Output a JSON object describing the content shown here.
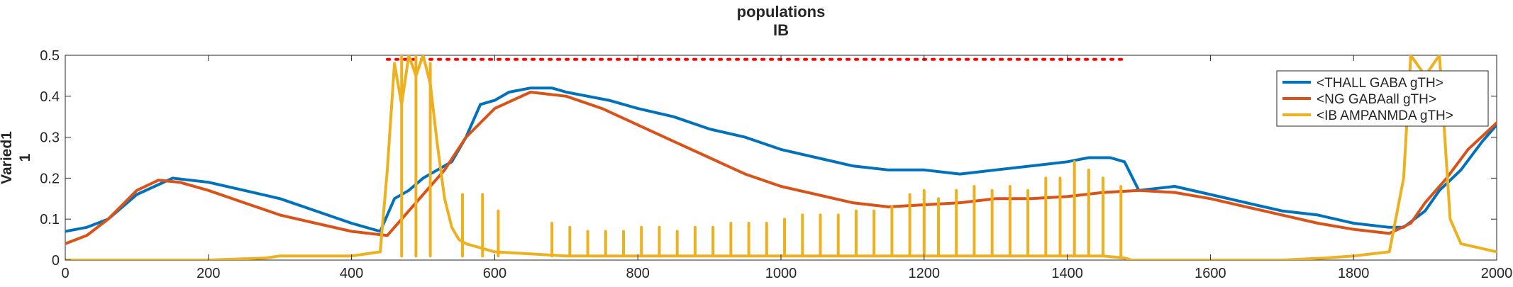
{
  "chart_data": {
    "type": "line",
    "title": [
      "populations",
      "IB"
    ],
    "ylabel": [
      "Varied1",
      "1"
    ],
    "xlabel": "",
    "xlim": [
      0,
      2000
    ],
    "ylim": [
      0,
      0.5
    ],
    "xticks": [
      "0",
      "200",
      "400",
      "600",
      "800",
      "1000",
      "1200",
      "1400",
      "1600",
      "1800",
      "2000"
    ],
    "yticks": [
      "0",
      "0.1",
      "0.2",
      "0.3",
      "0.4",
      "0.5"
    ],
    "grid": false,
    "legend_position": "top-right",
    "series": [
      {
        "name": "<THALL GABA gTH>",
        "color": "#0072BD",
        "x": [
          0,
          30,
          60,
          100,
          150,
          200,
          250,
          300,
          350,
          400,
          440,
          460,
          480,
          500,
          520,
          540,
          560,
          580,
          600,
          620,
          650,
          680,
          700,
          730,
          760,
          800,
          850,
          900,
          950,
          1000,
          1050,
          1100,
          1150,
          1200,
          1250,
          1300,
          1350,
          1400,
          1430,
          1460,
          1480,
          1500,
          1550,
          1600,
          1650,
          1700,
          1750,
          1800,
          1850,
          1870,
          1900,
          1920,
          1950,
          1980,
          2000
        ],
        "y": [
          0.07,
          0.08,
          0.1,
          0.16,
          0.2,
          0.19,
          0.17,
          0.15,
          0.12,
          0.09,
          0.07,
          0.15,
          0.17,
          0.2,
          0.22,
          0.24,
          0.3,
          0.38,
          0.39,
          0.41,
          0.42,
          0.42,
          0.41,
          0.4,
          0.39,
          0.37,
          0.35,
          0.32,
          0.3,
          0.27,
          0.25,
          0.23,
          0.22,
          0.22,
          0.21,
          0.22,
          0.23,
          0.24,
          0.25,
          0.25,
          0.24,
          0.17,
          0.18,
          0.16,
          0.14,
          0.12,
          0.11,
          0.09,
          0.08,
          0.08,
          0.12,
          0.17,
          0.22,
          0.29,
          0.33
        ]
      },
      {
        "name": "<NG GABAall gTH>",
        "color": "#D95319",
        "x": [
          0,
          30,
          60,
          100,
          130,
          160,
          200,
          250,
          300,
          350,
          400,
          450,
          470,
          500,
          530,
          560,
          600,
          650,
          700,
          750,
          800,
          850,
          900,
          950,
          1000,
          1050,
          1100,
          1150,
          1200,
          1250,
          1300,
          1350,
          1400,
          1450,
          1500,
          1550,
          1600,
          1650,
          1700,
          1750,
          1800,
          1850,
          1880,
          1900,
          1930,
          1960,
          2000
        ],
        "y": [
          0.04,
          0.06,
          0.1,
          0.17,
          0.195,
          0.19,
          0.17,
          0.14,
          0.11,
          0.09,
          0.07,
          0.06,
          0.1,
          0.16,
          0.22,
          0.3,
          0.37,
          0.41,
          0.4,
          0.37,
          0.33,
          0.29,
          0.25,
          0.21,
          0.18,
          0.16,
          0.14,
          0.13,
          0.135,
          0.14,
          0.15,
          0.15,
          0.155,
          0.165,
          0.17,
          0.165,
          0.15,
          0.13,
          0.11,
          0.09,
          0.075,
          0.065,
          0.09,
          0.14,
          0.2,
          0.27,
          0.335
        ]
      },
      {
        "name": "<IB AMPANMDA gTH>",
        "color": "#EDB120",
        "x": [
          0,
          100,
          200,
          280,
          300,
          350,
          400,
          440,
          450,
          460,
          470,
          480,
          490,
          500,
          510,
          520,
          530,
          540,
          550,
          560,
          580,
          600,
          650,
          700,
          800,
          900,
          1000,
          1100,
          1150,
          1200,
          1250,
          1300,
          1350,
          1400,
          1450,
          1480,
          1490,
          1550,
          1600,
          1700,
          1760,
          1800,
          1850,
          1870,
          1880,
          1900,
          1920,
          1935,
          1950,
          2000
        ],
        "y": [
          0.0,
          0.0,
          0.0,
          0.005,
          0.01,
          0.01,
          0.01,
          0.02,
          0.22,
          0.48,
          0.38,
          0.5,
          0.45,
          0.5,
          0.43,
          0.28,
          0.15,
          0.08,
          0.05,
          0.04,
          0.03,
          0.02,
          0.015,
          0.01,
          0.01,
          0.01,
          0.01,
          0.01,
          0.01,
          0.01,
          0.01,
          0.01,
          0.01,
          0.01,
          0.01,
          0.005,
          0.0,
          0.0,
          0.0,
          0.0,
          0.005,
          0.01,
          0.02,
          0.2,
          0.5,
          0.45,
          0.5,
          0.1,
          0.04,
          0.02
        ]
      }
    ],
    "spikes": [
      {
        "x": 470,
        "y": 0.5
      },
      {
        "x": 490,
        "y": 0.5
      },
      {
        "x": 510,
        "y": 0.48
      },
      {
        "x": 555,
        "y": 0.16
      },
      {
        "x": 583,
        "y": 0.16
      },
      {
        "x": 605,
        "y": 0.12
      },
      {
        "x": 680,
        "y": 0.09
      },
      {
        "x": 705,
        "y": 0.08
      },
      {
        "x": 730,
        "y": 0.07
      },
      {
        "x": 755,
        "y": 0.07
      },
      {
        "x": 780,
        "y": 0.07
      },
      {
        "x": 805,
        "y": 0.08
      },
      {
        "x": 830,
        "y": 0.08
      },
      {
        "x": 855,
        "y": 0.07
      },
      {
        "x": 880,
        "y": 0.08
      },
      {
        "x": 905,
        "y": 0.08
      },
      {
        "x": 930,
        "y": 0.09
      },
      {
        "x": 955,
        "y": 0.09
      },
      {
        "x": 980,
        "y": 0.09
      },
      {
        "x": 1005,
        "y": 0.1
      },
      {
        "x": 1030,
        "y": 0.11
      },
      {
        "x": 1055,
        "y": 0.11
      },
      {
        "x": 1080,
        "y": 0.11
      },
      {
        "x": 1105,
        "y": 0.12
      },
      {
        "x": 1130,
        "y": 0.12
      },
      {
        "x": 1155,
        "y": 0.13
      },
      {
        "x": 1180,
        "y": 0.16
      },
      {
        "x": 1200,
        "y": 0.17
      },
      {
        "x": 1220,
        "y": 0.15
      },
      {
        "x": 1245,
        "y": 0.17
      },
      {
        "x": 1270,
        "y": 0.18
      },
      {
        "x": 1295,
        "y": 0.17
      },
      {
        "x": 1320,
        "y": 0.18
      },
      {
        "x": 1345,
        "y": 0.17
      },
      {
        "x": 1370,
        "y": 0.2
      },
      {
        "x": 1390,
        "y": 0.2
      },
      {
        "x": 1410,
        "y": 0.24
      },
      {
        "x": 1430,
        "y": 0.22
      },
      {
        "x": 1450,
        "y": 0.2
      },
      {
        "x": 1475,
        "y": 0.18
      }
    ],
    "reference_line": {
      "y": 0.49,
      "x_start": 450,
      "x_end": 1480,
      "color": "#FF0000",
      "style": "dotted"
    }
  }
}
